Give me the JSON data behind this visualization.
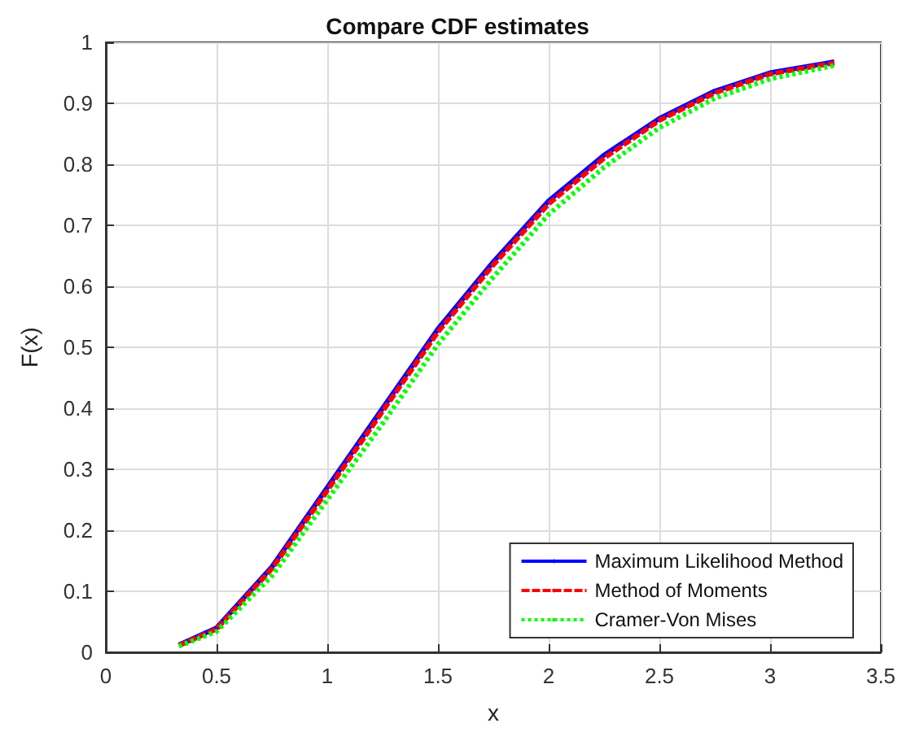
{
  "chart_data": {
    "type": "line",
    "title": "Compare CDF estimates",
    "xlabel": "x",
    "ylabel": "F(x)",
    "x": [
      0.33,
      0.5,
      0.75,
      1,
      1.25,
      1.5,
      1.75,
      2,
      2.25,
      2.5,
      2.75,
      3,
      3.29
    ],
    "series": [
      {
        "name": "Maximum Likelihood Method",
        "color": "#0000ff",
        "line_style": "solid",
        "values": [
          0.012,
          0.04,
          0.14,
          0.27,
          0.4,
          0.53,
          0.64,
          0.74,
          0.815,
          0.875,
          0.92,
          0.95,
          0.968
        ]
      },
      {
        "name": "Method of Moments",
        "color": "#ff0000",
        "line_style": "dashed",
        "values": [
          0.011,
          0.038,
          0.137,
          0.265,
          0.395,
          0.525,
          0.635,
          0.735,
          0.81,
          0.872,
          0.917,
          0.948,
          0.966
        ]
      },
      {
        "name": "Cramer-Von Mises",
        "color": "#00ff00",
        "line_style": "dotted",
        "values": [
          0.01,
          0.034,
          0.125,
          0.25,
          0.375,
          0.505,
          0.615,
          0.718,
          0.795,
          0.86,
          0.908,
          0.94,
          0.962
        ]
      }
    ],
    "xlim": [
      0,
      3.5
    ],
    "xticks": [
      0,
      0.5,
      1,
      1.5,
      2,
      2.5,
      3,
      3.5
    ],
    "ylim": [
      0,
      1
    ],
    "yticks": [
      0,
      0.1,
      0.2,
      0.3,
      0.4,
      0.5,
      0.6,
      0.7,
      0.8,
      0.9,
      1
    ],
    "grid": true,
    "legend": "bottom right",
    "marker": "none"
  }
}
